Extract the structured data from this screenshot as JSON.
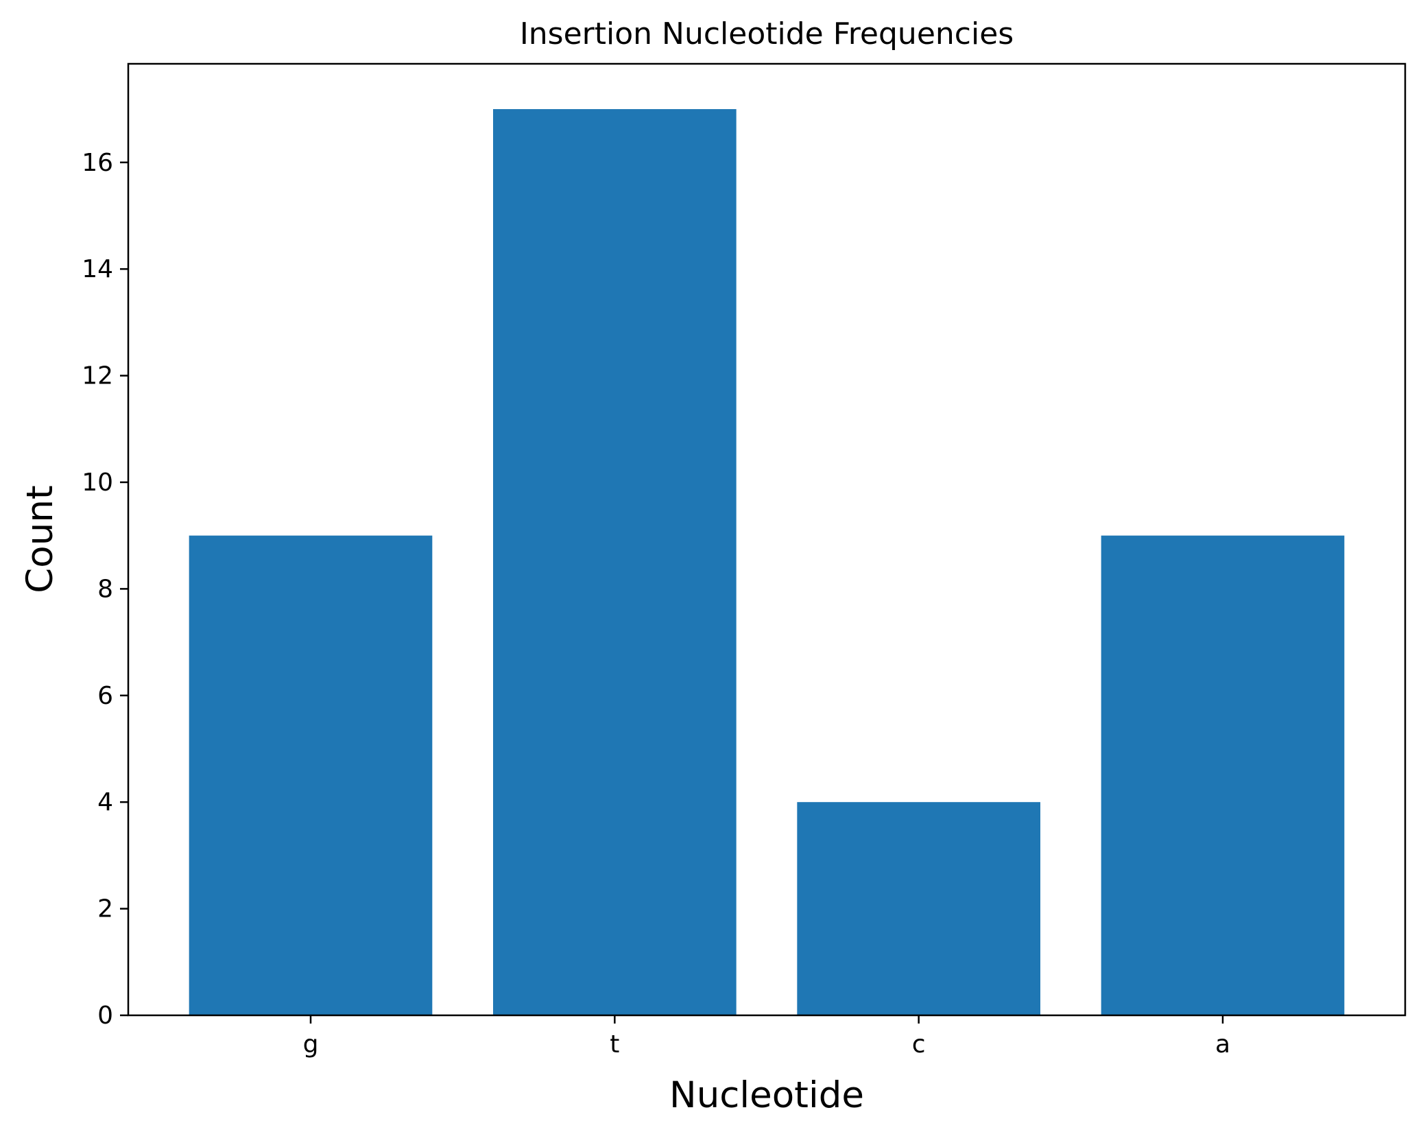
{
  "chart_data": {
    "type": "bar",
    "title": "Insertion Nucleotide Frequencies",
    "xlabel": "Nucleotide",
    "ylabel": "Count",
    "categories": [
      "g",
      "t",
      "c",
      "a"
    ],
    "values": [
      9,
      17,
      4,
      9
    ],
    "ylim": [
      0,
      17.85
    ],
    "yticks": [
      0,
      2,
      4,
      6,
      8,
      10,
      12,
      14,
      16
    ],
    "bar_color": "#1f77b4",
    "grid": false,
    "legend": "none"
  }
}
